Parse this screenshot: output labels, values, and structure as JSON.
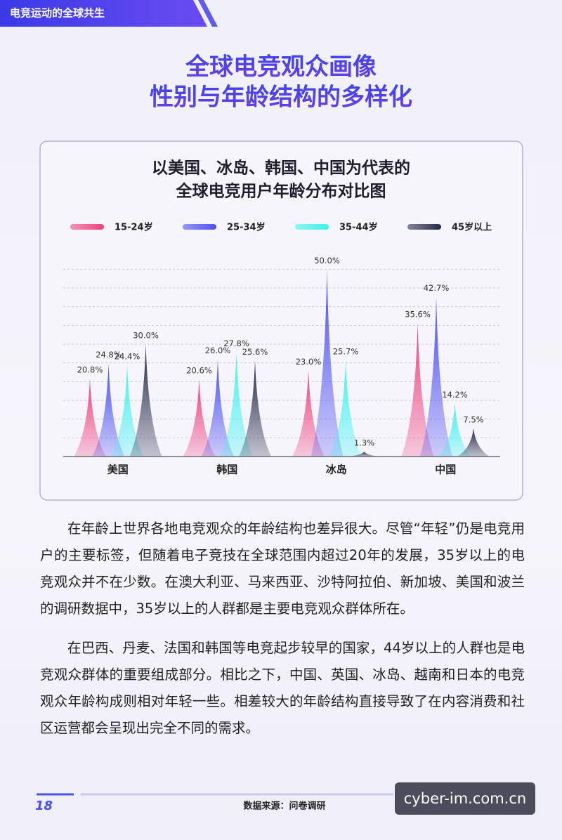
{
  "header": {
    "section": "电竞运动的全球共生"
  },
  "heading": [
    "全球电竞观众画像",
    "性别与年龄结构的多样化"
  ],
  "chart_data": {
    "type": "spike",
    "title": "以美国、冰岛、韩国、中国为代表的",
    "subtitle": "全球电竞用户年龄分布对比图",
    "categories": [
      "美国",
      "韩国",
      "冰岛",
      "中国"
    ],
    "series": [
      {
        "name": "15-24岁",
        "color": "#f0417c",
        "values": [
          20.8,
          20.6,
          23.0,
          35.6
        ],
        "value_labels": [
          "20.8%",
          "20.6%",
          "23.0%",
          "35.6%"
        ]
      },
      {
        "name": "25-34岁",
        "color": "#4b4ff0",
        "values": [
          24.8,
          26.0,
          50.0,
          42.7
        ],
        "value_labels": [
          "24.8%",
          "26.0%",
          "50.0%",
          "42.7%"
        ]
      },
      {
        "name": "35-44岁",
        "color": "#3df2ee",
        "values": [
          24.4,
          27.8,
          25.7,
          14.2
        ],
        "value_labels": [
          "24.4%",
          "27.8%",
          "25.7%",
          "14.2%"
        ]
      },
      {
        "name": "45岁以上",
        "color": "#262a48",
        "values": [
          30.0,
          25.6,
          1.3,
          7.5
        ],
        "value_labels": [
          "30.0%",
          "25.6%",
          "1.3%",
          "7.5%"
        ]
      }
    ],
    "ylim": [
      0,
      52.5
    ],
    "yticks": [
      0,
      5,
      10,
      15,
      20,
      25,
      30,
      35,
      40,
      45,
      50
    ],
    "grid": true
  },
  "paragraphs": [
    "在年龄上世界各地电竞观众的年龄结构也差异很大。尽管“年轻”仍是电竞用户的主要标签，但随着电子竞技在全球范围内超过20年的发展，35岁以上的电竞观众并不在少数。在澳大利亚、马来西亚、沙特阿拉伯、新加坡、美国和波兰的调研数据中，35岁以上的人群都是主要电竞观众群体所在。",
    "在巴西、丹麦、法国和韩国等电竞起步较早的国家，44岁以上的人群也是电竞观众群体的重要组成部分。相比之下，中国、英国、冰岛、越南和日本的电竞观众年龄构成则相对年轻一些。相差较大的年龄结构直接导致了在内容消费和社区运营都会呈现出完全不同的需求。"
  ],
  "footer": {
    "page": "18",
    "source": "数据来源：问卷调研"
  },
  "watermark": "cyber-im.com.cn"
}
